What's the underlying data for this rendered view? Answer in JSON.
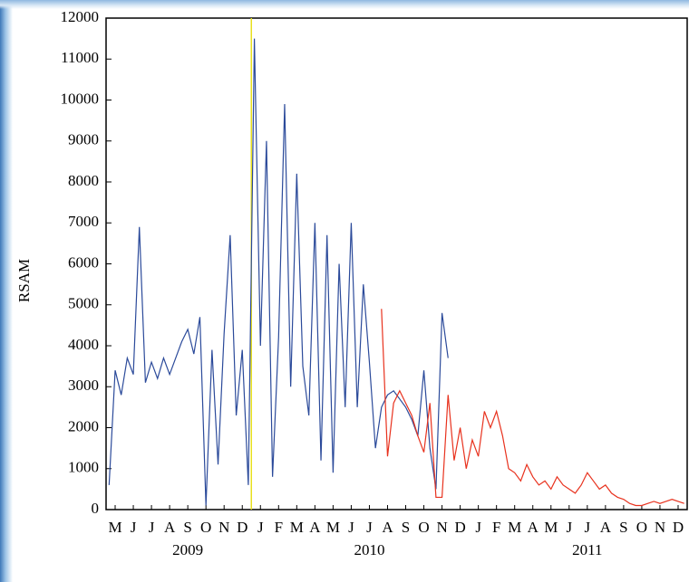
{
  "chart_data": {
    "type": "line",
    "y_label": "RSAM",
    "ylim": [
      0,
      12000
    ],
    "yticks": [
      0,
      1000,
      2000,
      3000,
      4000,
      5000,
      6000,
      7000,
      8000,
      9000,
      10000,
      11000,
      12000
    ],
    "categories": [
      null,
      "M",
      null,
      null,
      "J",
      null,
      null,
      "J",
      null,
      null,
      "A",
      null,
      null,
      "S",
      null,
      null,
      "O",
      null,
      null,
      "N",
      null,
      null,
      "D",
      null,
      null,
      "J",
      null,
      null,
      "F",
      null,
      null,
      "M",
      null,
      null,
      "A",
      null,
      null,
      "M",
      null,
      null,
      "J",
      null,
      null,
      "J",
      null,
      null,
      "A",
      null,
      null,
      "S",
      null,
      null,
      "O",
      null,
      null,
      "N",
      null,
      null,
      "D",
      null,
      null,
      "J",
      null,
      null,
      "F",
      null,
      null,
      "M",
      null,
      null,
      "A",
      null,
      null,
      "M",
      null,
      null,
      "J",
      null,
      null,
      "J",
      null,
      null,
      "A",
      null,
      null,
      "S",
      null,
      null,
      "O",
      null,
      null,
      "N",
      null,
      null,
      "D",
      null
    ],
    "year_labels": [
      "2009",
      "2010",
      "2011"
    ],
    "series": [
      {
        "name": "RSAM (blue)",
        "color": "#2b4a9a",
        "values": [
          600,
          3400,
          2800,
          3700,
          3300,
          6900,
          3100,
          3600,
          3200,
          3700,
          3300,
          3700,
          4100,
          4400,
          3800,
          4700,
          100,
          3900,
          1100,
          4300,
          6700,
          2300,
          3900,
          600,
          11500,
          4000,
          9000,
          800,
          4200,
          9900,
          3000,
          8200,
          3500,
          2300,
          7000,
          1200,
          6700,
          900,
          6000,
          2500,
          7000,
          2500,
          5500,
          3600,
          1500,
          2500,
          2800,
          2900,
          2700,
          2500,
          2200,
          1800,
          3400,
          1500,
          500,
          4800,
          3700,
          null,
          null,
          null,
          null,
          null,
          null,
          null,
          null,
          null,
          null,
          null,
          null,
          null,
          null,
          null,
          null,
          null,
          null,
          null,
          null,
          null,
          null,
          null,
          null,
          null,
          null,
          null,
          null,
          null,
          null,
          null,
          null,
          null,
          null,
          null,
          null,
          null,
          null,
          null
        ]
      },
      {
        "name": "RSAM (red)",
        "color": "#e8321e",
        "values": [
          null,
          null,
          null,
          null,
          null,
          null,
          null,
          null,
          null,
          null,
          null,
          null,
          null,
          null,
          null,
          null,
          null,
          null,
          null,
          null,
          null,
          null,
          null,
          null,
          null,
          null,
          null,
          null,
          null,
          null,
          null,
          null,
          null,
          null,
          null,
          null,
          null,
          null,
          null,
          null,
          null,
          null,
          null,
          null,
          null,
          4900,
          1300,
          2600,
          2900,
          2600,
          2300,
          1800,
          1400,
          2600,
          300,
          300,
          2800,
          1200,
          2000,
          1000,
          1700,
          1300,
          2400,
          2000,
          2400,
          1800,
          1000,
          900,
          700,
          1100,
          800,
          600,
          700,
          500,
          800,
          600,
          500,
          400,
          600,
          900,
          700,
          500,
          600,
          400,
          300,
          250,
          150,
          100,
          100,
          150,
          200,
          150,
          200,
          250,
          200,
          150
        ]
      }
    ]
  }
}
